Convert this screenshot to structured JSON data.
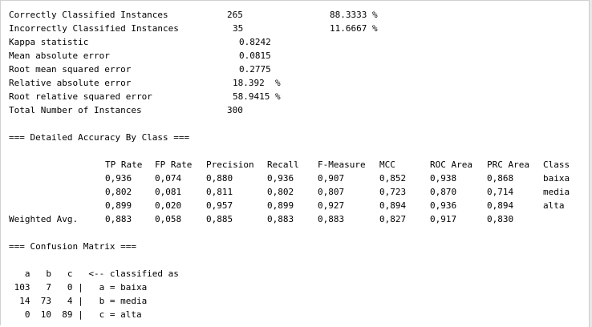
{
  "summary": {
    "correct": {
      "label": "Correctly Classified Instances",
      "count": "265",
      "pct": "88.3333 %"
    },
    "incorrect": {
      "label": "Incorrectly Classified Instances",
      "count": "35",
      "pct": "11.6667 %"
    },
    "kappa": {
      "label": "Kappa statistic",
      "value": "0.8242"
    },
    "mae": {
      "label": "Mean absolute error",
      "value": "0.0815"
    },
    "rmse": {
      "label": "Root mean squared error",
      "value": "0.2775"
    },
    "rae": {
      "label": "Relative absolute error",
      "value": "18.392  %"
    },
    "rrse": {
      "label": "Root relative squared error",
      "value": "58.9415 %"
    },
    "total": {
      "label": "Total Number of Instances",
      "value": "300"
    }
  },
  "accuracy": {
    "heading": "=== Detailed Accuracy By Class ===",
    "headers": [
      "TP Rate",
      "FP Rate",
      "Precision",
      "Recall",
      "F-Measure",
      "MCC",
      "ROC Area",
      "PRC Area",
      "Class"
    ],
    "rows": [
      {
        "label": "",
        "cells": [
          "0,936",
          "0,074",
          "0,880",
          "0,936",
          "0,907",
          "0,852",
          "0,938",
          "0,868",
          "baixa"
        ]
      },
      {
        "label": "",
        "cells": [
          "0,802",
          "0,081",
          "0,811",
          "0,802",
          "0,807",
          "0,723",
          "0,870",
          "0,714",
          "media"
        ]
      },
      {
        "label": "",
        "cells": [
          "0,899",
          "0,020",
          "0,957",
          "0,899",
          "0,927",
          "0,894",
          "0,936",
          "0,894",
          "alta"
        ]
      },
      {
        "label": "Weighted Avg.",
        "cells": [
          "0,883",
          "0,058",
          "0,885",
          "0,883",
          "0,883",
          "0,827",
          "0,917",
          "0,830",
          ""
        ]
      }
    ]
  },
  "confusion": {
    "heading": "=== Confusion Matrix ===",
    "header": "   a   b   c   <-- classified as",
    "rows": [
      " 103   7   0 |   a = baixa",
      "  14  73   4 |   b = media",
      "   0  10  89 |   c = alta"
    ]
  }
}
